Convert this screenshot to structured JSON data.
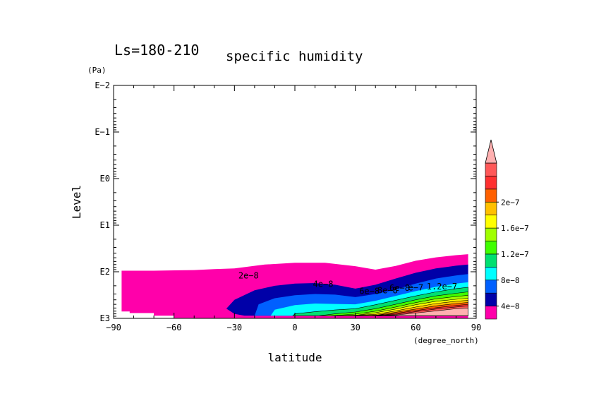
{
  "chart_data": {
    "type": "heatmap",
    "title": "Ls=180-210",
    "subtitle": "specific humidity",
    "xlabel": "latitude",
    "x_unit": "(degree_north)",
    "ylabel": "Level",
    "y_unit": "(Pa)",
    "xlim": [
      -90,
      90
    ],
    "ylim": [
      1000,
      0.01
    ],
    "y_scale": "log",
    "x_ticks": [
      {
        "value": -90,
        "label": "−90"
      },
      {
        "value": -60,
        "label": "−60"
      },
      {
        "value": -30,
        "label": "−30"
      },
      {
        "value": 0,
        "label": "0"
      },
      {
        "value": 30,
        "label": "30"
      },
      {
        "value": 60,
        "label": "60"
      },
      {
        "value": 90,
        "label": "90"
      }
    ],
    "y_ticks": [
      {
        "value": 0.01,
        "label": "E−2"
      },
      {
        "value": 0.1,
        "label": "E−1"
      },
      {
        "value": 1,
        "label": "E0"
      },
      {
        "value": 10,
        "label": "E1"
      },
      {
        "value": 100,
        "label": "E2"
      },
      {
        "value": 1000,
        "label": "E3"
      }
    ],
    "colorbar": {
      "levels": [
        0,
        4e-08,
        6e-08,
        8e-08,
        1e-07,
        1.2e-07,
        1.4e-07,
        1.6e-07,
        1.8e-07,
        2e-07,
        2.2e-07,
        2.4e-07
      ],
      "colors": [
        "#ff00aa",
        "#0000a8",
        "#0060ff",
        "#00ffff",
        "#00e070",
        "#40ff00",
        "#a0ff00",
        "#ffff00",
        "#ffc000",
        "#ff6000",
        "#ff3030",
        "#ff5858"
      ],
      "extend_color": "#ffb0b0",
      "labels": [
        {
          "value": 4e-08,
          "label": "4e−8"
        },
        {
          "value": 8e-08,
          "label": "8e−8"
        },
        {
          "value": 1.2e-07,
          "label": "1.2e−7"
        },
        {
          "value": 1.6e-07,
          "label": "1.6e−7"
        },
        {
          "value": 2e-07,
          "label": "2e−7"
        }
      ]
    },
    "contour_labels": [
      {
        "text": "2e−8",
        "lat": -23,
        "p": 140
      },
      {
        "text": "4e−8",
        "lat": 14,
        "p": 210
      },
      {
        "text": "6e−8",
        "lat": 37,
        "p": 300
      },
      {
        "text": "8e−8",
        "lat": 46,
        "p": 290
      },
      {
        "text": "6e−8",
        "lat": 52,
        "p": 255
      },
      {
        "text": "e−7",
        "lat": 60,
        "p": 250
      },
      {
        "text": "1.2e−7",
        "lat": 73,
        "p": 240
      }
    ],
    "regions": [
      {
        "level_index": 0,
        "upper": [
          [
            -86,
            95
          ],
          [
            -70,
            95
          ],
          [
            -50,
            92
          ],
          [
            -40,
            88
          ],
          [
            -30,
            85
          ],
          [
            -15,
            70
          ],
          [
            0,
            64
          ],
          [
            15,
            64
          ],
          [
            30,
            76
          ],
          [
            40,
            90
          ],
          [
            50,
            75
          ],
          [
            60,
            58
          ],
          [
            70,
            49
          ],
          [
            80,
            44
          ],
          [
            86,
            42
          ]
        ],
        "lower": [
          [
            -86,
            710
          ],
          [
            -82,
            710
          ],
          [
            -82,
            770
          ],
          [
            -70,
            770
          ],
          [
            -70,
            880
          ],
          [
            -60,
            880
          ],
          [
            -60,
            980
          ],
          [
            -50,
            980
          ],
          [
            -50,
            1000
          ],
          [
            -30,
            1000
          ],
          [
            86,
            1000
          ]
        ]
      },
      {
        "level_index": 1,
        "upper": [
          [
            -34,
            620
          ],
          [
            -30,
            400
          ],
          [
            -20,
            250
          ],
          [
            -10,
            200
          ],
          [
            0,
            180
          ],
          [
            10,
            175
          ],
          [
            20,
            190
          ],
          [
            30,
            230
          ],
          [
            40,
            190
          ],
          [
            50,
            140
          ],
          [
            60,
            105
          ],
          [
            70,
            85
          ],
          [
            80,
            74
          ],
          [
            86,
            70
          ]
        ],
        "lower": [
          [
            -34,
            620
          ],
          [
            -30,
            800
          ],
          [
            -25,
            880
          ],
          [
            86,
            880
          ]
        ]
      },
      {
        "level_index": 2,
        "upper": [
          [
            -20,
            880
          ],
          [
            -18,
            500
          ],
          [
            -10,
            370
          ],
          [
            0,
            320
          ],
          [
            10,
            300
          ],
          [
            20,
            310
          ],
          [
            30,
            350
          ],
          [
            40,
            300
          ],
          [
            50,
            240
          ],
          [
            60,
            180
          ],
          [
            70,
            140
          ],
          [
            80,
            120
          ],
          [
            86,
            112
          ]
        ],
        "lower": [
          [
            -20,
            880
          ],
          [
            86,
            880
          ]
        ]
      },
      {
        "level_index": 3,
        "upper": [
          [
            -12,
            880
          ],
          [
            -10,
            650
          ],
          [
            0,
            520
          ],
          [
            10,
            480
          ],
          [
            20,
            490
          ],
          [
            30,
            500
          ],
          [
            40,
            420
          ],
          [
            50,
            330
          ],
          [
            60,
            260
          ],
          [
            70,
            210
          ],
          [
            80,
            180
          ],
          [
            86,
            168
          ]
        ],
        "lower": [
          [
            -12,
            880
          ],
          [
            86,
            880
          ]
        ]
      },
      {
        "level_index": 4,
        "upper": [
          [
            -1,
            880
          ],
          [
            0,
            800
          ],
          [
            10,
            720
          ],
          [
            20,
            660
          ],
          [
            30,
            620
          ],
          [
            40,
            510
          ],
          [
            50,
            410
          ],
          [
            60,
            330
          ],
          [
            70,
            270
          ],
          [
            80,
            230
          ],
          [
            86,
            215
          ]
        ],
        "lower": [
          [
            -1,
            880
          ],
          [
            86,
            880
          ]
        ]
      },
      {
        "level_index": 5,
        "upper": [
          [
            12,
            880
          ],
          [
            20,
            800
          ],
          [
            30,
            730
          ],
          [
            40,
            620
          ],
          [
            50,
            500
          ],
          [
            60,
            400
          ],
          [
            70,
            330
          ],
          [
            80,
            290
          ],
          [
            86,
            270
          ]
        ],
        "lower": [
          [
            12,
            880
          ],
          [
            86,
            880
          ]
        ]
      },
      {
        "level_index": 6,
        "upper": [
          [
            18,
            880
          ],
          [
            30,
            810
          ],
          [
            40,
            700
          ],
          [
            50,
            570
          ],
          [
            60,
            460
          ],
          [
            70,
            380
          ],
          [
            80,
            340
          ],
          [
            86,
            320
          ]
        ],
        "lower": [
          [
            18,
            880
          ],
          [
            86,
            880
          ]
        ]
      },
      {
        "level_index": 7,
        "upper": [
          [
            22,
            880
          ],
          [
            30,
            860
          ],
          [
            40,
            760
          ],
          [
            50,
            630
          ],
          [
            60,
            510
          ],
          [
            70,
            430
          ],
          [
            80,
            390
          ],
          [
            86,
            370
          ]
        ],
        "lower": [
          [
            22,
            880
          ],
          [
            86,
            880
          ]
        ]
      },
      {
        "level_index": 8,
        "upper": [
          [
            25,
            880
          ],
          [
            40,
            820
          ],
          [
            50,
            690
          ],
          [
            60,
            570
          ],
          [
            70,
            480
          ],
          [
            80,
            430
          ],
          [
            86,
            410
          ]
        ],
        "lower": [
          [
            25,
            880
          ],
          [
            86,
            880
          ]
        ]
      },
      {
        "level_index": 9,
        "upper": [
          [
            30,
            880
          ],
          [
            40,
            860
          ],
          [
            50,
            740
          ],
          [
            60,
            630
          ],
          [
            70,
            540
          ],
          [
            80,
            480
          ],
          [
            86,
            455
          ]
        ],
        "lower": [
          [
            30,
            880
          ],
          [
            86,
            880
          ]
        ]
      },
      {
        "level_index": 10,
        "upper": [
          [
            35,
            880
          ],
          [
            45,
            830
          ],
          [
            50,
            780
          ],
          [
            60,
            680
          ],
          [
            70,
            590
          ],
          [
            80,
            530
          ],
          [
            86,
            500
          ]
        ],
        "lower": [
          [
            35,
            880
          ],
          [
            86,
            880
          ]
        ]
      },
      {
        "level_index": 11,
        "upper": [
          [
            40,
            880
          ],
          [
            50,
            820
          ],
          [
            60,
            720
          ],
          [
            70,
            630
          ],
          [
            80,
            570
          ],
          [
            86,
            540
          ]
        ],
        "lower": [
          [
            40,
            880
          ],
          [
            86,
            880
          ]
        ]
      },
      {
        "level_index": 12,
        "upper": [
          [
            44,
            880
          ],
          [
            50,
            850
          ],
          [
            60,
            770
          ],
          [
            70,
            690
          ],
          [
            80,
            620
          ],
          [
            86,
            600
          ]
        ],
        "lower": [
          [
            44,
            880
          ],
          [
            86,
            880
          ]
        ]
      }
    ]
  }
}
